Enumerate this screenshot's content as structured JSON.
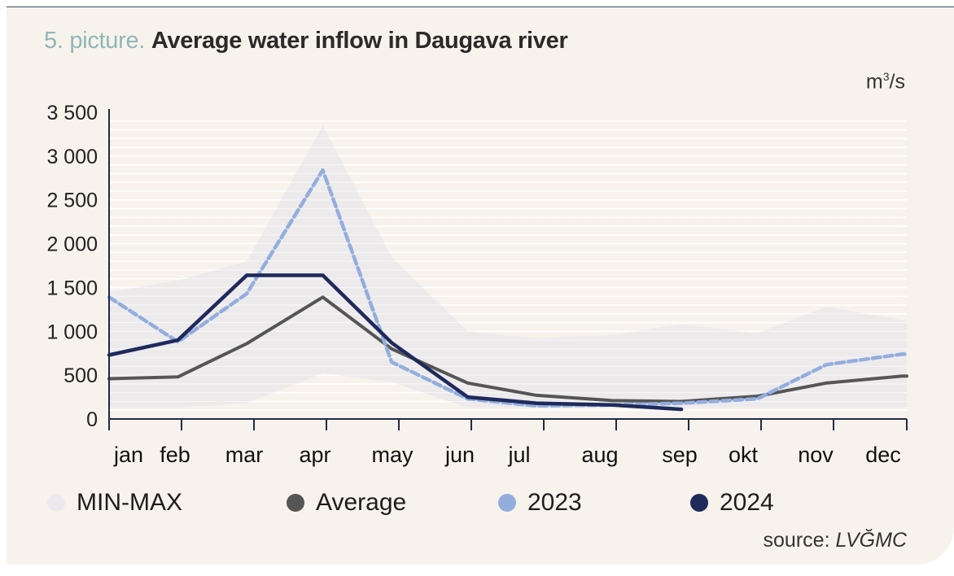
{
  "header": {
    "prefix": "5. picture.",
    "title": "Average water inflow in Daugava river"
  },
  "unit": {
    "base": "m",
    "sup": "3",
    "tail": "/s"
  },
  "source": {
    "label": "source:",
    "name": "LVĞMC"
  },
  "colors": {
    "background": "#f7f3ec",
    "minmax": "#ebe9ec",
    "average": "#555555",
    "y2023": "#93aedd",
    "y2024": "#1f2a5c",
    "title_prefix": "#8fb7b8"
  },
  "chart_data": {
    "type": "line",
    "title": "Average water inflow in Daugava river",
    "ylabel": "m3/s",
    "ylim": [
      0,
      3500
    ],
    "yticks": [
      0,
      500,
      1000,
      1500,
      2000,
      2500,
      3000,
      3500
    ],
    "ytick_labels": [
      "0",
      "500",
      "1 000",
      "1 500",
      "2 000",
      "2 500",
      "3 000",
      "3 500"
    ],
    "categories": [
      "jan",
      "feb",
      "mar",
      "apr",
      "may",
      "jun",
      "jul",
      "aug",
      "sep",
      "okt",
      "nov",
      "dec"
    ],
    "grid": true,
    "legend_position": "bottom",
    "band": {
      "name": "MIN-MAX",
      "x": [
        0.0,
        0.95,
        1.9,
        2.95,
        3.9,
        4.95,
        5.9,
        6.95,
        7.9,
        8.95,
        9.9,
        10.95
      ],
      "min": [
        130,
        130,
        180,
        520,
        420,
        130,
        130,
        130,
        130,
        130,
        130,
        130
      ],
      "max": [
        1450,
        1580,
        1800,
        3350,
        1850,
        1000,
        920,
        960,
        1080,
        980,
        1280,
        1130
      ]
    },
    "series": [
      {
        "name": "Average",
        "x": [
          0.0,
          0.95,
          1.9,
          2.95,
          3.9,
          4.95,
          5.9,
          6.95,
          7.9,
          8.95,
          9.9,
          10.95
        ],
        "values": [
          460,
          480,
          860,
          1390,
          800,
          410,
          270,
          210,
          200,
          260,
          410,
          490
        ]
      },
      {
        "name": "2023",
        "style": "dashed",
        "x": [
          0.0,
          0.95,
          1.9,
          2.95,
          3.9,
          4.95,
          5.9,
          6.95,
          7.9,
          8.95,
          9.9,
          10.95
        ],
        "values": [
          1390,
          880,
          1430,
          2840,
          650,
          230,
          150,
          160,
          180,
          230,
          620,
          740
        ]
      },
      {
        "name": "2024",
        "x": [
          0.0,
          0.95,
          1.9,
          2.95,
          3.9,
          4.95,
          5.9,
          6.95,
          7.9
        ],
        "values": [
          730,
          900,
          1640,
          1640,
          870,
          250,
          180,
          160,
          110
        ]
      }
    ]
  }
}
